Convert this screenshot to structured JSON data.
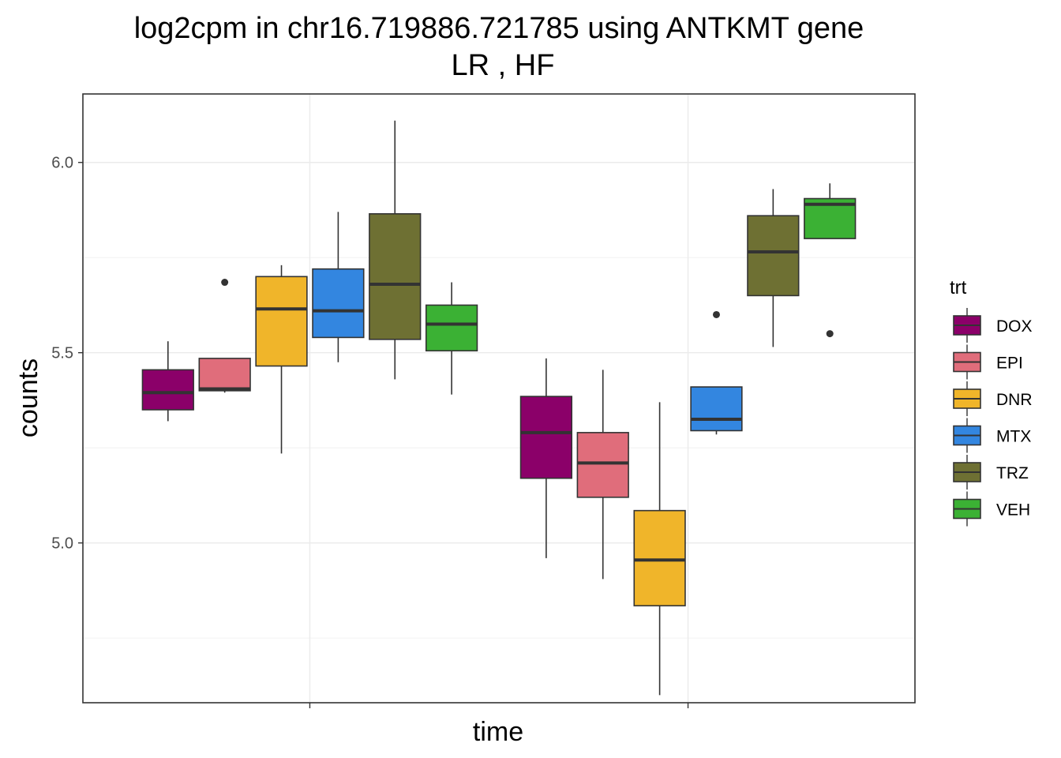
{
  "chart_data": {
    "type": "box",
    "title_line1": "log2cpm in  chr16.719886.721785  using  ANTKMT  gene",
    "title_line2": "LR ,  HF",
    "xlabel": "time",
    "ylabel": "counts",
    "ylim": [
      4.58,
      6.18
    ],
    "y_ticks": [
      5.0,
      5.5,
      6.0
    ],
    "y_tick_labels": [
      "5.0",
      "5.5",
      "6.0"
    ],
    "x_groups": [
      "",
      ""
    ],
    "grid": true,
    "legend": {
      "title": "trt",
      "position": "right",
      "entries": [
        "DOX",
        "EPI",
        "DNR",
        "MTX",
        "TRZ",
        "VEH"
      ]
    },
    "colors": {
      "DOX": "#8B0069",
      "EPI": "#E06D7B",
      "DNR": "#F0B52A",
      "MTX": "#3386E0",
      "TRZ": "#6E7033",
      "VEH": "#3BB134"
    },
    "series": [
      {
        "name": "DOX",
        "boxes": [
          {
            "min": 5.32,
            "q1": 5.35,
            "median": 5.395,
            "q3": 5.455,
            "max": 5.53,
            "outliers": []
          },
          {
            "min": 4.96,
            "q1": 5.17,
            "median": 5.29,
            "q3": 5.385,
            "max": 5.485,
            "outliers": []
          }
        ]
      },
      {
        "name": "EPI",
        "boxes": [
          {
            "min": 5.395,
            "q1": 5.4,
            "median": 5.405,
            "q3": 5.485,
            "max": 5.485,
            "outliers": [
              5.685
            ]
          },
          {
            "min": 4.905,
            "q1": 5.12,
            "median": 5.21,
            "q3": 5.29,
            "max": 5.455,
            "outliers": []
          }
        ]
      },
      {
        "name": "DNR",
        "boxes": [
          {
            "min": 5.235,
            "q1": 5.465,
            "median": 5.615,
            "q3": 5.7,
            "max": 5.73,
            "outliers": []
          },
          {
            "min": 4.6,
            "q1": 4.835,
            "median": 4.955,
            "q3": 5.085,
            "max": 5.37,
            "outliers": []
          }
        ]
      },
      {
        "name": "MTX",
        "boxes": [
          {
            "min": 5.475,
            "q1": 5.54,
            "median": 5.61,
            "q3": 5.72,
            "max": 5.87,
            "outliers": []
          },
          {
            "min": 5.285,
            "q1": 5.295,
            "median": 5.325,
            "q3": 5.41,
            "max": 5.41,
            "outliers": [
              5.6
            ]
          }
        ]
      },
      {
        "name": "TRZ",
        "boxes": [
          {
            "min": 5.43,
            "q1": 5.535,
            "median": 5.68,
            "q3": 5.865,
            "max": 6.11,
            "outliers": []
          },
          {
            "min": 5.515,
            "q1": 5.65,
            "median": 5.765,
            "q3": 5.86,
            "max": 5.93,
            "outliers": []
          }
        ]
      },
      {
        "name": "VEH",
        "boxes": [
          {
            "min": 5.39,
            "q1": 5.505,
            "median": 5.575,
            "q3": 5.625,
            "max": 5.685,
            "outliers": []
          },
          {
            "min": 5.8,
            "q1": 5.8,
            "median": 5.89,
            "q3": 5.905,
            "max": 5.945,
            "outliers": [
              5.55
            ]
          }
        ]
      }
    ]
  }
}
